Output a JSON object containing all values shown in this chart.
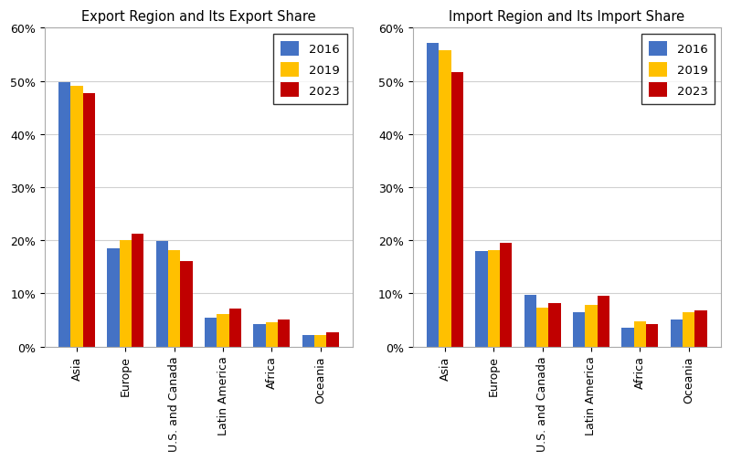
{
  "export": {
    "title": "Export Region and Its Export Share",
    "categories": [
      "Asia",
      "Europe",
      "U.S. and Canada",
      "Latin America",
      "Africa",
      "Oceania"
    ],
    "years": [
      "2016",
      "2019",
      "2023"
    ],
    "values": {
      "2016": [
        0.497,
        0.185,
        0.198,
        0.055,
        0.043,
        0.022
      ],
      "2019": [
        0.49,
        0.2,
        0.182,
        0.061,
        0.045,
        0.022
      ],
      "2023": [
        0.477,
        0.212,
        0.16,
        0.072,
        0.05,
        0.027
      ]
    }
  },
  "import": {
    "title": "Import Region and Its Import Share",
    "categories": [
      "Asia",
      "Europe",
      "U.S. and Canada",
      "Latin America",
      "Africa",
      "Oceania"
    ],
    "years": [
      "2016",
      "2019",
      "2023"
    ],
    "values": {
      "2016": [
        0.572,
        0.18,
        0.097,
        0.065,
        0.035,
        0.051
      ],
      "2019": [
        0.557,
        0.181,
        0.073,
        0.079,
        0.047,
        0.065
      ],
      "2023": [
        0.517,
        0.196,
        0.081,
        0.096,
        0.042,
        0.068
      ]
    }
  },
  "colors": {
    "2016": "#4472C4",
    "2019": "#FFC000",
    "2023": "#C00000"
  },
  "ylim": [
    0,
    0.6
  ],
  "yticks": [
    0.0,
    0.1,
    0.2,
    0.3,
    0.4,
    0.5,
    0.6
  ],
  "ytick_labels": [
    "0%",
    "10%",
    "20%",
    "30%",
    "40%",
    "50%",
    "60%"
  ],
  "bar_width": 0.25,
  "legend_loc": "upper right",
  "grid_color": "#d0d0d0",
  "spine_color": "#aaaaaa",
  "background_color": "#ffffff",
  "title_fontsize": 10.5,
  "tick_fontsize": 9,
  "legend_fontsize": 9.5
}
